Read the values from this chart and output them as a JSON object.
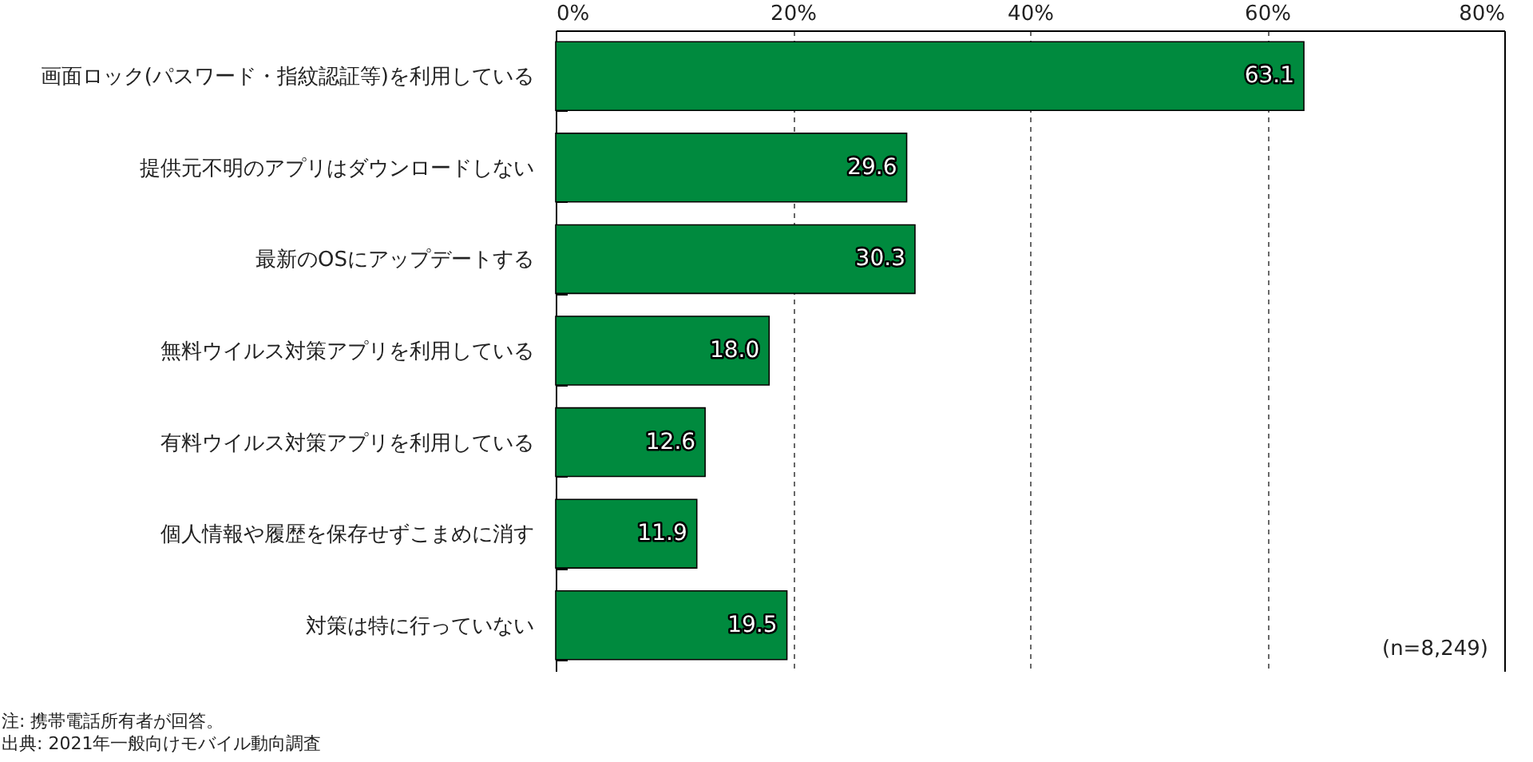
{
  "chart_data": {
    "type": "bar",
    "orientation": "horizontal",
    "categories": [
      "画面ロック(パスワード・指紋認証等)を利用している",
      "提供元不明のアプリはダウンロードしない",
      "最新のOSにアップデートする",
      "無料ウイルス対策アプリを利用している",
      "有料ウイルス対策アプリを利用している",
      "個人情報や履歴を保存せずこまめに消す",
      "対策は特に行っていない"
    ],
    "values": [
      63.1,
      29.6,
      30.3,
      18.0,
      12.6,
      11.9,
      19.5
    ],
    "value_labels": [
      "63.1",
      "29.6",
      "30.3",
      "18.0",
      "12.6",
      "11.9",
      "19.5"
    ],
    "color": "#008a3e",
    "xlim": [
      0,
      80
    ],
    "xticks": [
      {
        "value": 0,
        "label": "0%"
      },
      {
        "value": 20,
        "label": "20%"
      },
      {
        "value": 40,
        "label": "40%"
      },
      {
        "value": 60,
        "label": "60%"
      },
      {
        "value": 80,
        "label": "80%"
      }
    ],
    "grid": "x",
    "annotations": [
      "(n=8,249)",
      "注: 携帯電話所有者が回答。",
      "出典: 2021年一般向けモバイル動向調査"
    ]
  }
}
